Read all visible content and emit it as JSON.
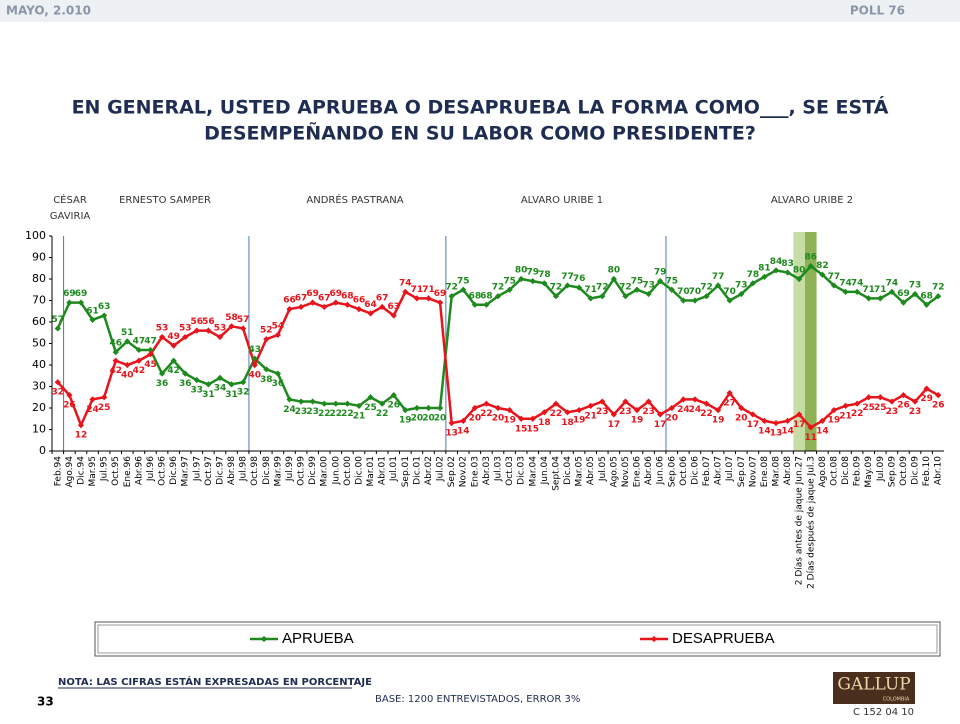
{
  "header": {
    "date": "MAYO, 2.010",
    "poll": "POLL 76"
  },
  "chart_data": {
    "type": "line",
    "title": [
      "EN GENERAL, USTED APRUEBA O DESAPRUEBA LA FORMA COMO___, SE ESTÁ",
      "DESEMPEÑANDO EN SU LABOR COMO PRESIDENTE?"
    ],
    "periods": [
      [
        "CÉSAR",
        "GAVIRIA"
      ],
      [
        "ERNESTO SAMPER"
      ],
      [
        "ANDRÉS  PASTRANA"
      ],
      [
        "ALVARO URIBE 1"
      ],
      [
        "ALVARO URIBE 2"
      ]
    ],
    "categories": [
      "Feb.94",
      "Ago.94",
      "Dic.94",
      "Mar.95",
      "Jul.95",
      "Oct.95",
      "Ene.96",
      "Abr.96",
      "Jul.96",
      "Oct.96",
      "Dic.96",
      "Mar.97",
      "Jul.97",
      "Oct.97",
      "Dic.97",
      "Abr.98",
      "Jul.98",
      "Oct.98",
      "Dic.98",
      "Mar.99",
      "Jul.99",
      "Oct.99",
      "Dic.99",
      "Mar.00",
      "Jun.00",
      "Oct.00",
      "Dic.00",
      "Mar.01",
      "Abr.01",
      "Jul.01",
      "Sep.01",
      "Dic.01",
      "Abr.02",
      "Jul.02",
      "Sep.02",
      "Nov.02",
      "Ene.03",
      "Abr.03",
      "Jul.03",
      "Oct.03",
      "Dic.03",
      "Mar.04",
      "Jun.04",
      "Sept.04",
      "Dic.04",
      "Mar.05",
      "Abr.05",
      "Jul.05",
      "Ago.05",
      "Nov.05",
      "Ene.06",
      "Abr.06",
      "Jun.06",
      "Sep.06",
      "Oct.06",
      "Dic.06",
      "Feb.07",
      "Abr.07",
      "Jul.07",
      "Sep.07",
      "Nov.07",
      "Ene.08",
      "Mar.08",
      "Abr.08",
      "2 Días antes de jaque Jun.27",
      "2 Días después de jaque Jul.3",
      "Ago.08",
      "Oct.08",
      "Dic.08",
      "Feb.09",
      "May.09",
      "Jul.09",
      "Sep.09",
      "Oct.09",
      "Dic.09",
      "Feb.10",
      "Abr.10"
    ],
    "series": [
      {
        "name": "APRUEBA",
        "color": "#1e8a1e",
        "values": [
          57,
          69,
          69,
          61,
          63,
          46,
          51,
          47,
          47,
          36,
          42,
          36,
          33,
          31,
          34,
          31,
          32,
          43,
          38,
          36,
          24,
          23,
          23,
          22,
          22,
          22,
          21,
          25,
          22,
          26,
          19,
          20,
          20,
          20,
          72,
          75,
          68,
          68,
          72,
          75,
          80,
          79,
          78,
          72,
          77,
          76,
          71,
          72,
          80,
          72,
          75,
          73,
          79,
          75,
          70,
          70,
          72,
          77,
          70,
          73,
          78,
          81,
          84,
          83,
          80,
          86,
          82,
          77,
          74,
          74,
          71,
          71,
          74,
          69,
          73,
          68,
          72
        ]
      },
      {
        "name": "DESAPRUEBA",
        "color": "#e8141b",
        "values": [
          32,
          26,
          12,
          24,
          25,
          42,
          40,
          42,
          45,
          53,
          49,
          53,
          56,
          56,
          53,
          58,
          57,
          40,
          52,
          54,
          66,
          67,
          69,
          67,
          69,
          68,
          66,
          64,
          67,
          63,
          74,
          71,
          71,
          69,
          13,
          14,
          20,
          22,
          20,
          19,
          15,
          15,
          18,
          22,
          18,
          19,
          21,
          23,
          17,
          23,
          19,
          23,
          17,
          20,
          24,
          24,
          22,
          19,
          27,
          20,
          17,
          14,
          13,
          14,
          17,
          11,
          14,
          19,
          21,
          22,
          25,
          25,
          23,
          26,
          23,
          29,
          26
        ]
      }
    ],
    "ylim": [
      0,
      100
    ],
    "yticks": [
      0,
      10,
      20,
      30,
      40,
      50,
      60,
      70,
      80,
      90,
      100
    ],
    "grid": false
  },
  "footer": {
    "note": "NOTA: LAS CIFRAS ESTÁN EXPRESADAS EN PORCENTAJE",
    "page": "33",
    "base": "BASE: 1200 ENTREVISTADOS, ERROR 3%",
    "logo": "GALLUP",
    "logo_sub": "COLOMBIA",
    "code": "C 152 04 10"
  }
}
